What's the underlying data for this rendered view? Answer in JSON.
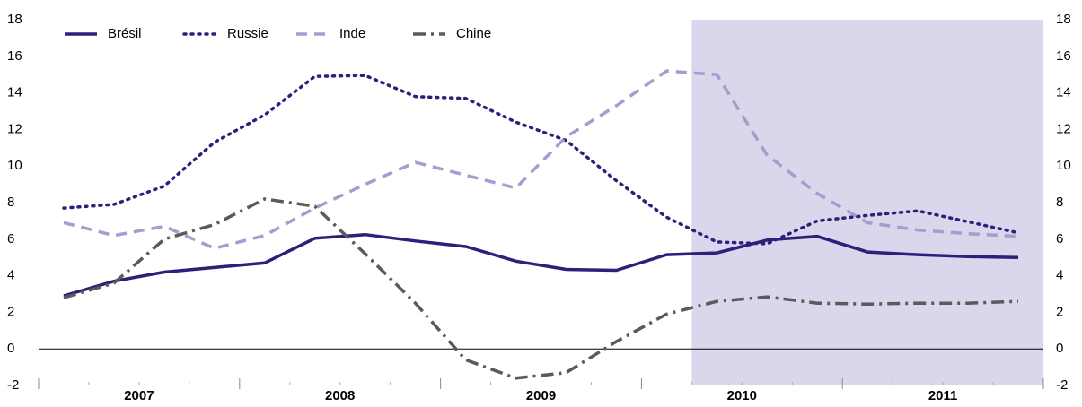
{
  "chart_data": {
    "type": "line",
    "years": [
      "2007",
      "2008",
      "2009",
      "2010",
      "2011"
    ],
    "series": [
      {
        "name": "Brésil",
        "color": "#2e1f7a",
        "style": "solid",
        "values": [
          2.9,
          3.7,
          4.2,
          4.45,
          4.7,
          6.05,
          6.25,
          5.9,
          5.6,
          4.8,
          4.35,
          4.3,
          5.15,
          5.25,
          5.95,
          6.15,
          5.3,
          5.15,
          5.05,
          5.0
        ]
      },
      {
        "name": "Russie",
        "color": "#2e1f7a",
        "style": "dotted",
        "values": [
          7.7,
          7.9,
          8.9,
          11.3,
          12.8,
          14.9,
          14.95,
          13.8,
          13.7,
          12.4,
          11.4,
          9.2,
          7.2,
          5.85,
          5.75,
          7.0,
          7.3,
          7.55,
          6.95,
          6.35
        ]
      },
      {
        "name": "Inde",
        "color": "#a59ccf",
        "style": "dashed",
        "values": [
          6.9,
          6.2,
          6.7,
          5.5,
          6.2,
          7.7,
          9.0,
          10.2,
          9.5,
          8.8,
          11.6,
          13.3,
          15.2,
          15.0,
          10.6,
          8.5,
          6.9,
          6.5,
          6.3,
          6.15
        ]
      },
      {
        "name": "Chine",
        "color": "#5a5a5a",
        "style": "dashdot",
        "values": [
          2.8,
          3.6,
          6.0,
          6.8,
          8.2,
          7.8,
          5.2,
          2.5,
          -0.6,
          -1.6,
          -1.3,
          0.4,
          1.9,
          2.6,
          2.85,
          2.5,
          2.45,
          2.5,
          2.5,
          2.6
        ]
      }
    ],
    "shaded_from_index": 13,
    "shade_color": "#dcd6ec",
    "ylim": [
      -2,
      18
    ],
    "yticks": [
      -2,
      0,
      2,
      4,
      6,
      8,
      10,
      12,
      14,
      16,
      18
    ],
    "y2lim": [
      -2,
      18
    ],
    "y2ticks": [
      -2,
      0,
      2,
      4,
      6,
      8,
      10,
      12,
      14,
      16,
      18
    ],
    "legend": "top-left"
  }
}
